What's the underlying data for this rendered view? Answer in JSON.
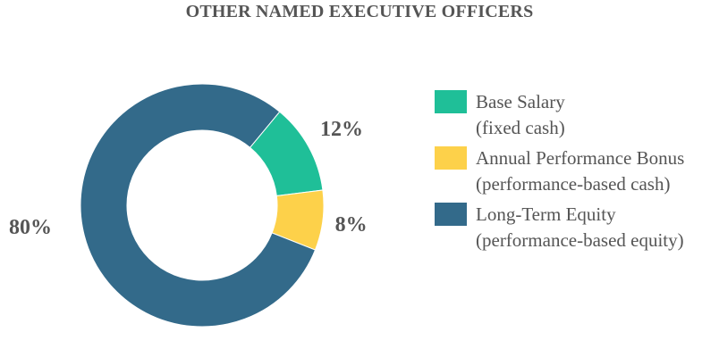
{
  "chart_data": {
    "type": "pie",
    "title": "OTHER NAMED EXECUTIVE OFFICERS",
    "slices": [
      {
        "label": "Base Salary",
        "sublabel": "(fixed cash)",
        "value": 12,
        "display": "12%",
        "color": "#1fbf98"
      },
      {
        "label": "Annual Performance Bonus",
        "sublabel": "(performance-based cash)",
        "value": 8,
        "display": "8%",
        "color": "#fdd14a"
      },
      {
        "label": "Long-Term Equity",
        "sublabel": "(performance-based equity)",
        "value": 80,
        "display": "80%",
        "color": "#336a8a"
      }
    ],
    "donut": true,
    "legend_position": "right"
  }
}
